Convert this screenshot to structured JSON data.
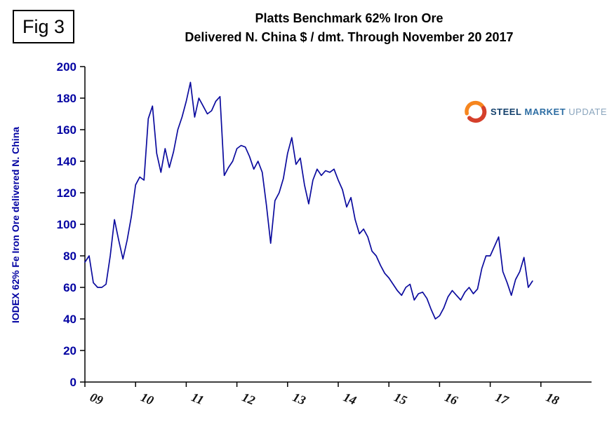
{
  "figure_label": "Fig 3",
  "title": {
    "line1": "Platts Benchmark 62% Iron Ore",
    "line2": "Delivered N. China $ / dmt. Through November 20 2017"
  },
  "logo": {
    "word1": "STEEL",
    "word2": "MARKET",
    "word3": "UPDATE"
  },
  "colors": {
    "line": "#0b0b9e",
    "y_label": "#0202a2",
    "x_label": "#111111",
    "axis": "#000000",
    "logo_orange": "#f6861f",
    "logo_red": "#d5402b"
  },
  "chart_data": {
    "type": "line",
    "title": "Platts Benchmark 62% Iron Ore Delivered N. China $ / dmt. Through November 20 2017",
    "ylabel": "IODEX 62% Fe Iron Ore delivered N. China",
    "xlabel": "",
    "ylim": [
      0,
      200
    ],
    "y_tick_step": 20,
    "y_tick_labels": [
      "0",
      "20",
      "40",
      "60",
      "80",
      "100",
      "120",
      "140",
      "160",
      "180",
      "200"
    ],
    "xlim": [
      2009,
      2019
    ],
    "x_tick_labels": [
      "09",
      "10",
      "11",
      "12",
      "13",
      "14",
      "15",
      "16",
      "17",
      "18"
    ],
    "grid": false,
    "legend_position": "none",
    "series": [
      {
        "name": "Platts IODEX 62% Fe Iron Ore delivered N. China ($/dmt)",
        "x_start_year": 2009,
        "x_interval_months": 1,
        "x_end": "November 2017",
        "values": [
          76,
          80,
          63,
          60,
          60,
          62,
          80,
          103,
          90,
          78,
          90,
          105,
          125,
          130,
          128,
          167,
          175,
          145,
          133,
          148,
          136,
          146,
          160,
          168,
          178,
          190,
          168,
          180,
          175,
          170,
          172,
          178,
          181,
          131,
          136,
          140,
          148,
          150,
          149,
          143,
          135,
          140,
          133,
          112,
          88,
          115,
          120,
          129,
          145,
          155,
          138,
          142,
          125,
          113,
          128,
          135,
          131,
          134,
          133,
          135,
          128,
          122,
          111,
          117,
          103,
          94,
          97,
          92,
          83,
          80,
          74,
          69,
          66,
          62,
          58,
          55,
          60,
          62,
          52,
          56,
          57,
          53,
          46,
          40,
          42,
          47,
          54,
          58,
          55,
          52,
          57,
          60,
          56,
          59,
          72,
          80,
          80,
          86,
          92,
          70,
          63,
          55,
          65,
          70,
          79,
          60,
          64
        ]
      }
    ]
  }
}
